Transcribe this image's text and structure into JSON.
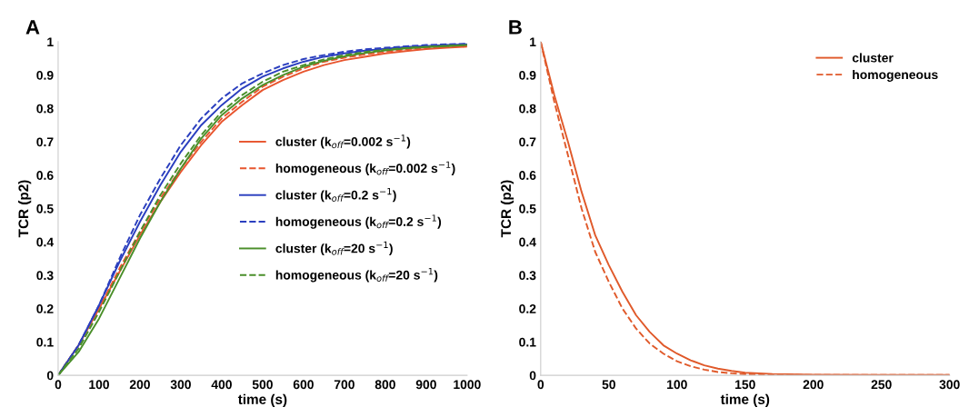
{
  "chart_data": [
    {
      "type": "line",
      "title": "A",
      "xlabel": "time (s)",
      "ylabel": "TCR (p2)",
      "xlim": [
        0,
        1000
      ],
      "xticks": [
        0,
        100,
        200,
        300,
        400,
        500,
        600,
        700,
        800,
        900,
        1000
      ],
      "ylim": [
        0,
        1
      ],
      "yticks": [
        0,
        0.1,
        0.2,
        0.3,
        0.4,
        0.5,
        0.6,
        0.7,
        0.8,
        0.9,
        1
      ],
      "legend": "right",
      "grid": false,
      "x": [
        0,
        50,
        100,
        150,
        200,
        250,
        300,
        350,
        400,
        450,
        500,
        550,
        600,
        650,
        700,
        750,
        800,
        850,
        900,
        950,
        1000
      ],
      "series": [
        {
          "name": "cluster (k$_{off}$=0.002 s$^{−1}$)",
          "color": "#e8552e",
          "line_style": "solid",
          "values": [
            0,
            0.09,
            0.2,
            0.31,
            0.42,
            0.52,
            0.61,
            0.69,
            0.76,
            0.81,
            0.855,
            0.885,
            0.91,
            0.93,
            0.945,
            0.955,
            0.965,
            0.972,
            0.978,
            0.982,
            0.985
          ]
        },
        {
          "name": "homogeneous (k$_{off}$=0.002 s$^{−1}$)",
          "color": "#e8552e",
          "line_style": "dashed",
          "values": [
            0,
            0.09,
            0.2,
            0.32,
            0.43,
            0.53,
            0.62,
            0.7,
            0.77,
            0.82,
            0.865,
            0.895,
            0.92,
            0.94,
            0.952,
            0.962,
            0.97,
            0.977,
            0.982,
            0.986,
            0.988
          ]
        },
        {
          "name": "cluster (k$_{off}$=0.2 s$^{−1}$)",
          "color": "#2b3fbf",
          "line_style": "solid",
          "values": [
            0,
            0.09,
            0.21,
            0.34,
            0.46,
            0.57,
            0.67,
            0.75,
            0.81,
            0.86,
            0.895,
            0.92,
            0.94,
            0.955,
            0.965,
            0.973,
            0.979,
            0.984,
            0.987,
            0.99,
            0.992
          ]
        },
        {
          "name": "homogeneous (k$_{off}$=0.2 s$^{−1}$)",
          "color": "#2b3fbf",
          "line_style": "dashed",
          "values": [
            0,
            0.09,
            0.21,
            0.35,
            0.48,
            0.59,
            0.69,
            0.77,
            0.83,
            0.875,
            0.905,
            0.93,
            0.948,
            0.96,
            0.97,
            0.977,
            0.982,
            0.986,
            0.99,
            0.992,
            0.994
          ]
        },
        {
          "name": "cluster (k$_{off}$=20 s$^{−1}$)",
          "color": "#4a8f2a",
          "line_style": "solid",
          "values": [
            0,
            0.07,
            0.17,
            0.29,
            0.41,
            0.52,
            0.62,
            0.71,
            0.78,
            0.83,
            0.87,
            0.9,
            0.925,
            0.943,
            0.956,
            0.966,
            0.974,
            0.98,
            0.984,
            0.987,
            0.99
          ]
        },
        {
          "name": "homogeneous (k$_{off}$=20 s$^{−1}$)",
          "color": "#4a8f2a",
          "line_style": "dashed",
          "values": [
            0,
            0.08,
            0.19,
            0.31,
            0.43,
            0.54,
            0.635,
            0.72,
            0.79,
            0.84,
            0.88,
            0.91,
            0.93,
            0.947,
            0.96,
            0.969,
            0.976,
            0.981,
            0.985,
            0.988,
            0.99
          ]
        }
      ]
    },
    {
      "type": "line",
      "title": "B",
      "xlabel": "time (s)",
      "ylabel": "TCR (p2)",
      "xlim": [
        0,
        300
      ],
      "xticks": [
        0,
        50,
        100,
        150,
        200,
        250,
        300
      ],
      "ylim": [
        0,
        1
      ],
      "yticks": [
        0,
        0.1,
        0.2,
        0.3,
        0.4,
        0.5,
        0.6,
        0.7,
        0.8,
        0.9,
        1
      ],
      "legend": "top right",
      "grid": false,
      "x": [
        0,
        10,
        20,
        30,
        40,
        50,
        60,
        70,
        80,
        90,
        100,
        110,
        120,
        130,
        140,
        150,
        170,
        200,
        250,
        300
      ],
      "series": [
        {
          "name": "cluster",
          "color": "#e05a2b",
          "line_style": "solid",
          "values": [
            1,
            0.84,
            0.7,
            0.55,
            0.42,
            0.33,
            0.25,
            0.18,
            0.13,
            0.09,
            0.065,
            0.045,
            0.03,
            0.02,
            0.013,
            0.008,
            0.004,
            0.002,
            0.001,
            0.001
          ]
        },
        {
          "name": "homogeneous",
          "color": "#e05a2b",
          "line_style": "dashed",
          "values": [
            1,
            0.82,
            0.66,
            0.5,
            0.37,
            0.28,
            0.2,
            0.14,
            0.095,
            0.065,
            0.042,
            0.027,
            0.017,
            0.01,
            0.006,
            0.003,
            0.002,
            0.001,
            0.001,
            0.001
          ]
        }
      ]
    }
  ]
}
